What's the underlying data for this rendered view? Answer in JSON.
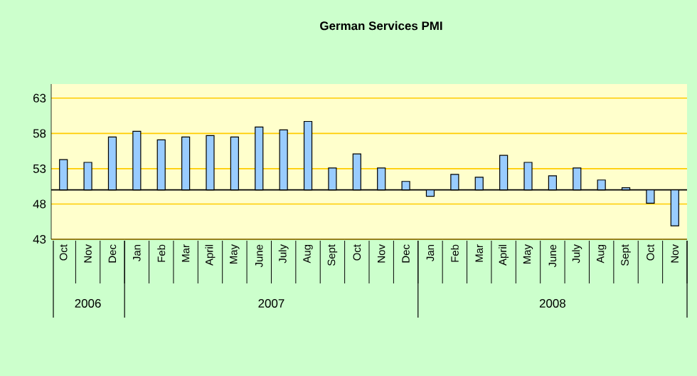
{
  "chart_data": {
    "type": "bar",
    "title": "German Services  PMI",
    "categories": [
      "Oct",
      "Nov",
      "Dec",
      "Jan",
      "Feb",
      "Mar",
      "April",
      "May",
      "June",
      "July",
      "Aug",
      "Sept",
      "Oct",
      "Nov",
      "Dec",
      "Jan",
      "Feb",
      "Mar",
      "April",
      "May",
      "June",
      "July",
      "Aug",
      "Sept",
      "Oct",
      "Nov"
    ],
    "base": [
      50,
      50,
      50,
      50,
      50,
      50,
      50,
      50,
      50,
      50,
      50,
      50,
      50,
      50,
      50,
      50,
      50,
      50,
      50,
      50,
      50,
      50,
      50,
      50,
      50,
      50
    ],
    "values": [
      4.3,
      3.9,
      7.5,
      8.3,
      7.1,
      7.5,
      7.7,
      7.5,
      8.9,
      8.5,
      9.7,
      3.1,
      5.1,
      3.1,
      1.2,
      -0.9,
      2.2,
      1.8,
      4.9,
      3.9,
      2.0,
      3.1,
      1.4,
      0.3,
      -1.9,
      -5.1
    ],
    "color": "#99ccff",
    "ylim": [
      43,
      65
    ],
    "yticks": [
      43,
      48,
      53,
      58,
      63
    ],
    "grid": "y",
    "ref_lines": [
      {
        "axis": "y",
        "value": 50,
        "color": "#000000"
      }
    ],
    "annotations": [
      "2006",
      "2007",
      "2008"
    ]
  }
}
